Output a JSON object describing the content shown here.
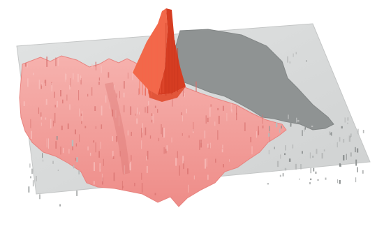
{
  "scene": {
    "kind": "3d-population-surface",
    "background_color": "#ffffff",
    "plate_color": "#d7d9d9",
    "plate_edge_color": "#c6c8c8",
    "neighbor_region_color": "#8f9393",
    "neighbor_region_edge_color": "#7f8383",
    "surface_color": "#f29a96",
    "surface_light_color": "#f8c2bf",
    "surface_dark_color": "#d7706d",
    "peak_color": "#ee4a2e",
    "peak_dark_color": "#c8351f",
    "peak_light_color": "#f7664a",
    "scatter_color": "#b9bbbb",
    "peak_level": 1.0,
    "secondary_peak_level": 0.32
  }
}
